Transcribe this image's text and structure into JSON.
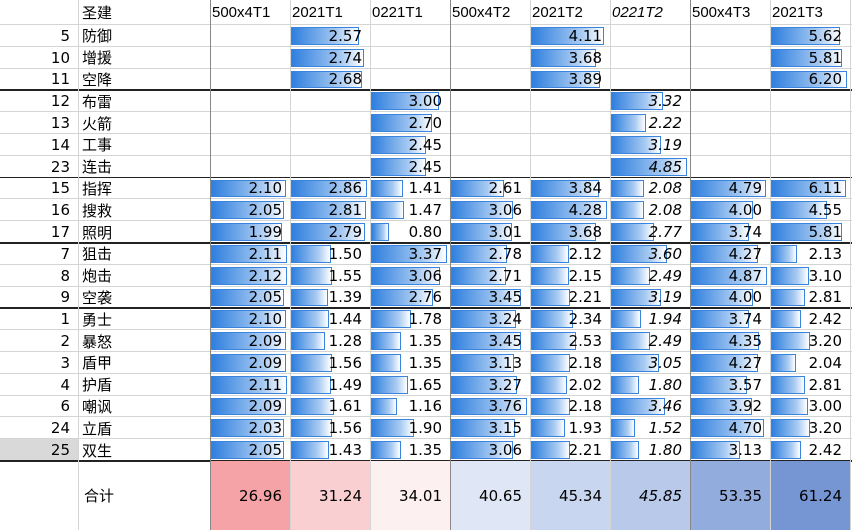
{
  "header": {
    "name": "圣建",
    "columns": [
      "500x4T1",
      "2021T1",
      "0221T1",
      "500x4T2",
      "2021T2",
      "0221T2",
      "500x4T3",
      "2021T3"
    ]
  },
  "groups": [
    {
      "rows": [
        {
          "id": "5",
          "name": "防御",
          "values": [
            null,
            "2.57",
            null,
            null,
            "4.11",
            null,
            null,
            "5.62"
          ]
        },
        {
          "id": "10",
          "name": "增援",
          "values": [
            null,
            "2.74",
            null,
            null,
            "3.68",
            null,
            null,
            "5.81"
          ]
        },
        {
          "id": "11",
          "name": "空降",
          "values": [
            null,
            "2.68",
            null,
            null,
            "3.89",
            null,
            null,
            "6.20"
          ]
        }
      ]
    },
    {
      "rows": [
        {
          "id": "12",
          "name": "布雷",
          "values": [
            null,
            null,
            "3.00",
            null,
            null,
            "3.32",
            null,
            null
          ]
        },
        {
          "id": "13",
          "name": "火箭",
          "values": [
            null,
            null,
            "2.70",
            null,
            null,
            "2.22",
            null,
            null
          ]
        },
        {
          "id": "14",
          "name": "工事",
          "values": [
            null,
            null,
            "2.45",
            null,
            null,
            "3.19",
            null,
            null
          ]
        },
        {
          "id": "23",
          "name": "连击",
          "values": [
            null,
            null,
            "2.45",
            null,
            null,
            "4.85",
            null,
            null
          ]
        }
      ]
    },
    {
      "rows": [
        {
          "id": "15",
          "name": "指挥",
          "values": [
            "2.10",
            "2.86",
            "1.41",
            "2.61",
            "3.84",
            "2.08",
            "4.79",
            "6.11"
          ]
        },
        {
          "id": "16",
          "name": "搜救",
          "values": [
            "2.05",
            "2.81",
            "1.47",
            "3.06",
            "4.28",
            "2.08",
            "4.00",
            "4.55"
          ]
        },
        {
          "id": "17",
          "name": "照明",
          "values": [
            "1.99",
            "2.79",
            "0.80",
            "3.01",
            "3.68",
            "2.77",
            "3.74",
            "5.81"
          ]
        }
      ]
    },
    {
      "rows": [
        {
          "id": "7",
          "name": "狙击",
          "values": [
            "2.11",
            "1.50",
            "3.37",
            "2.78",
            "2.12",
            "3.60",
            "4.27",
            "2.13"
          ]
        },
        {
          "id": "8",
          "name": "炮击",
          "values": [
            "2.12",
            "1.55",
            "3.06",
            "2.71",
            "2.15",
            "2.49",
            "4.87",
            "3.10"
          ]
        },
        {
          "id": "9",
          "name": "空袭",
          "values": [
            "2.05",
            "1.39",
            "2.76",
            "3.45",
            "2.21",
            "3.19",
            "4.00",
            "2.81"
          ]
        }
      ]
    },
    {
      "rows": [
        {
          "id": "1",
          "name": "勇士",
          "values": [
            "2.10",
            "1.44",
            "1.78",
            "3.24",
            "2.34",
            "1.94",
            "3.74",
            "2.42"
          ]
        },
        {
          "id": "2",
          "name": "暴怒",
          "values": [
            "2.09",
            "1.28",
            "1.35",
            "3.45",
            "2.53",
            "2.49",
            "4.35",
            "3.20"
          ]
        },
        {
          "id": "3",
          "name": "盾甲",
          "values": [
            "2.09",
            "1.56",
            "1.35",
            "3.13",
            "2.18",
            "3.05",
            "4.27",
            "2.04"
          ]
        },
        {
          "id": "4",
          "name": "护盾",
          "values": [
            "2.11",
            "1.49",
            "1.65",
            "3.27",
            "2.02",
            "1.80",
            "3.57",
            "2.81"
          ]
        },
        {
          "id": "6",
          "name": "嘲讽",
          "values": [
            "2.09",
            "1.61",
            "1.16",
            "3.76",
            "2.18",
            "3.46",
            "3.92",
            "3.00"
          ]
        },
        {
          "id": "24",
          "name": "立盾",
          "values": [
            "2.03",
            "1.56",
            "1.90",
            "3.15",
            "1.93",
            "1.52",
            "4.70",
            "3.20"
          ]
        },
        {
          "id": "25",
          "name": "双生",
          "values": [
            "2.05",
            "1.43",
            "1.35",
            "3.06",
            "2.21",
            "1.80",
            "3.13",
            "2.42"
          ]
        }
      ]
    }
  ],
  "total": {
    "label": "合计",
    "values": [
      "26.96",
      "31.24",
      "34.01",
      "40.65",
      "45.34",
      "45.85",
      "53.35",
      "61.24"
    ],
    "colors": [
      "#f5a3a6",
      "#f9cfd1",
      "#fdf0f1",
      "#dfe6f5",
      "#c9d6ef",
      "#b8c9ea",
      "#93acde",
      "#7595d3"
    ]
  }
}
